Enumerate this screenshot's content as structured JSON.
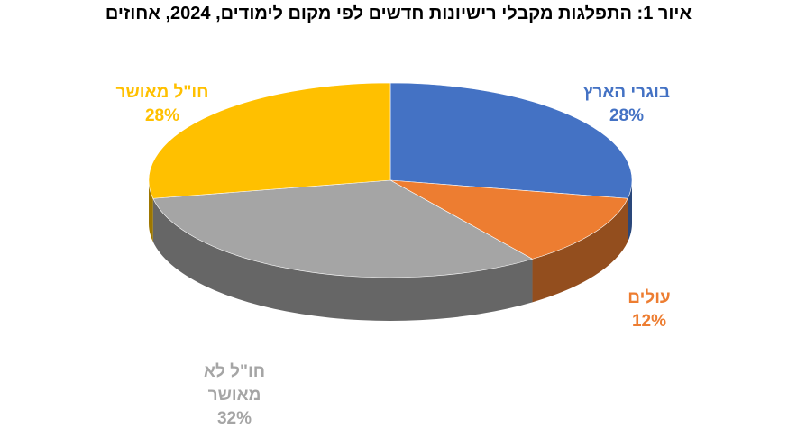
{
  "chart_data": {
    "type": "pie3d",
    "title": "איור 1: התפלגות מקבלי רישיונות חדשים לפי מקום לימודים, 2024, אחוזים",
    "categories": [
      "בוגרי הארץ",
      "עולים",
      "חו\"ל לא מאושר",
      "חו\"ל מאושר"
    ],
    "values": [
      28,
      12,
      32,
      28
    ],
    "value_labels": [
      "28%",
      "12%",
      "32%",
      "28%"
    ],
    "colors": [
      "#4472c4",
      "#ed7d31",
      "#a5a5a5",
      "#ffc000"
    ]
  }
}
